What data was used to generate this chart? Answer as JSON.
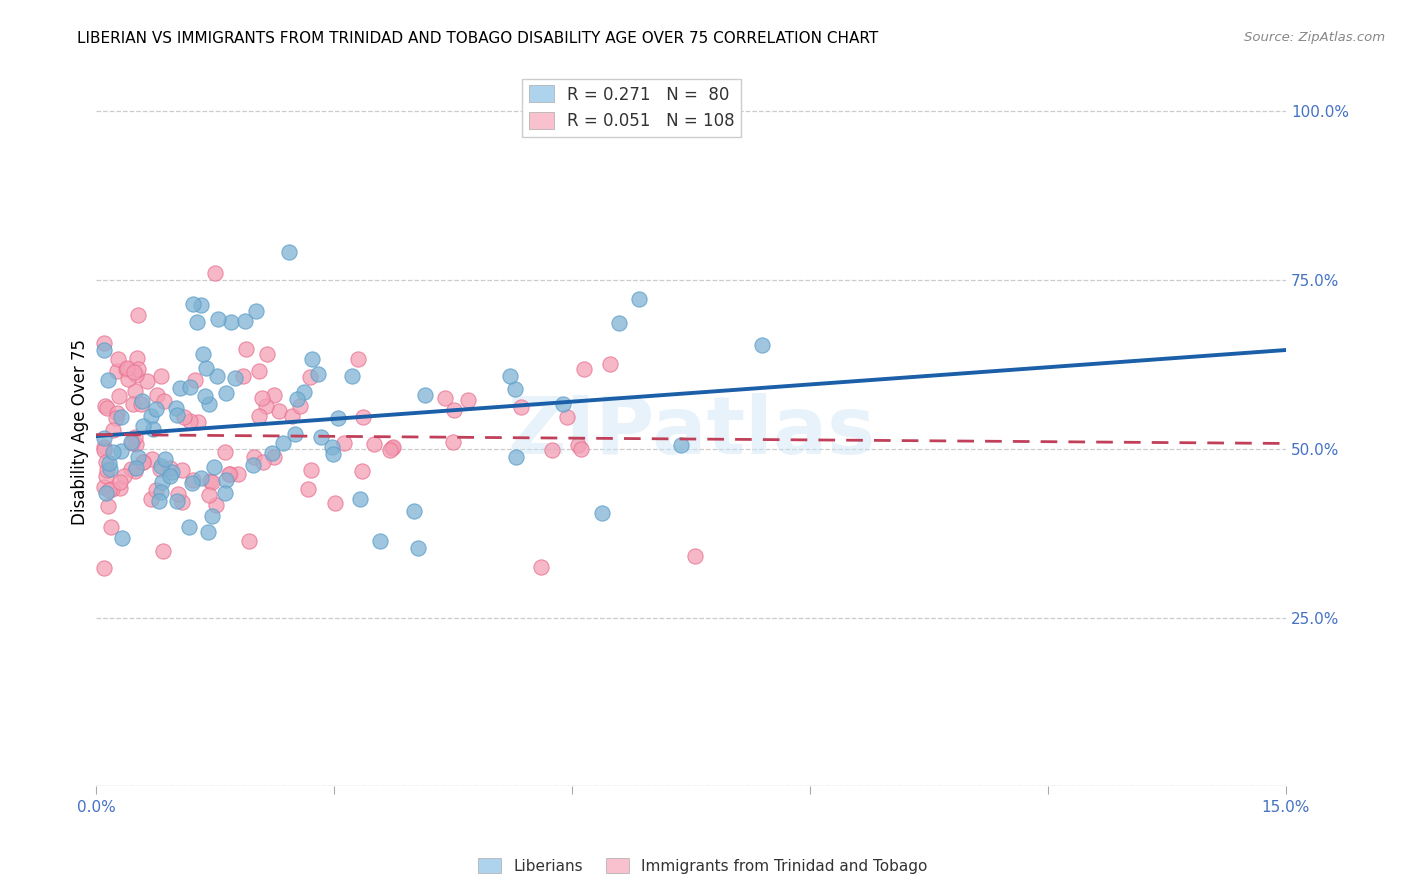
{
  "title": "LIBERIAN VS IMMIGRANTS FROM TRINIDAD AND TOBAGO DISABILITY AGE OVER 75 CORRELATION CHART",
  "source": "Source: ZipAtlas.com",
  "ylabel": "Disability Age Over 75",
  "watermark": "ZIPatlas",
  "liberian_color": "#7fb3d3",
  "liberian_edge_color": "#5b9dc9",
  "trinidad_color": "#f4a0b5",
  "trinidad_edge_color": "#e87090",
  "liberian_R": 0.271,
  "liberian_N": 80,
  "trinidad_R": 0.051,
  "trinidad_N": 108,
  "xmin": 0.0,
  "xmax": 0.15,
  "ymin": 0.0,
  "ymax": 1.05,
  "blue_line_color": "#1a5fa8",
  "pink_line_color": "#c0405a",
  "legend_box_color1": "#aed4ed",
  "legend_box_color2": "#f9c0cd",
  "liberian_seed": 7,
  "trinidad_seed": 13
}
